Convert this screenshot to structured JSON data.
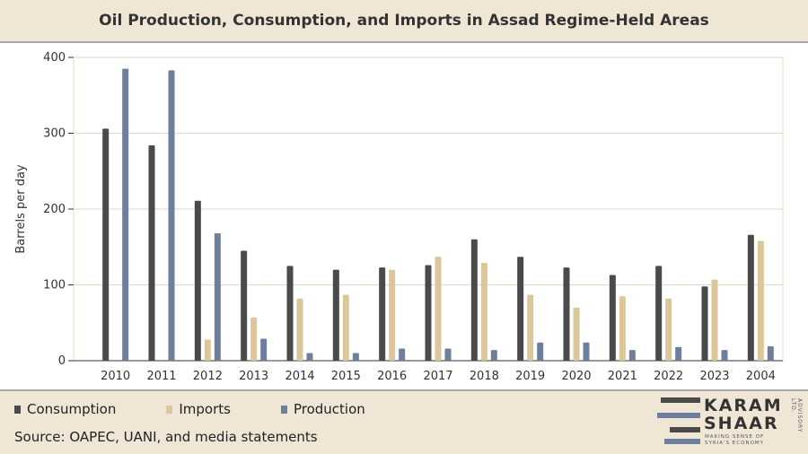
{
  "chart_data": {
    "type": "bar",
    "title": "Oil Production, Consumption, and Imports in Assad Regime-Held Areas",
    "ylabel": "Barrels per day",
    "xlabel": "",
    "ylim": [
      0,
      400
    ],
    "yticks": [
      0,
      100,
      200,
      300,
      400
    ],
    "grid": true,
    "legend_position": "bottom-left",
    "categories": [
      "2010",
      "2011",
      "2012",
      "2013",
      "2014",
      "2015",
      "2016",
      "2017",
      "2018",
      "2019",
      "2020",
      "2021",
      "2022",
      "2023",
      "2004"
    ],
    "series": [
      {
        "name": "Consumption",
        "color": "#4a4a4a",
        "values": [
          306,
          284,
          211,
          145,
          125,
          120,
          123,
          126,
          160,
          137,
          123,
          113,
          125,
          98,
          166
        ]
      },
      {
        "name": "Imports",
        "color": "#dcc69c",
        "values": [
          null,
          null,
          28,
          57,
          82,
          87,
          120,
          137,
          129,
          87,
          70,
          85,
          82,
          107,
          158
        ]
      },
      {
        "name": "Production",
        "color": "#6e7f9d",
        "values": [
          385,
          383,
          168,
          29,
          10,
          10,
          16,
          16,
          14,
          24,
          24,
          14,
          18,
          14,
          19
        ]
      }
    ]
  },
  "footer": {
    "source": "Source: OAPEC, UANI, and media statements"
  },
  "logo": {
    "line1": "KARAM",
    "line2": "SHAAR",
    "tagline1": "MAKING SENSE OF",
    "tagline2": "SYRIA'S ECONOMY",
    "side": "ADVISORY LTD."
  }
}
